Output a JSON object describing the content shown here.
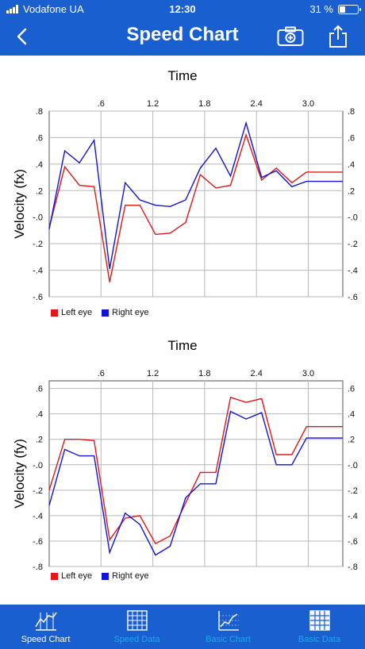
{
  "status": {
    "carrier": "Vodafone UA",
    "time": "12:30",
    "battery": "31 %",
    "battery_level": 0.31
  },
  "nav": {
    "title": "Speed Chart"
  },
  "colors": {
    "brand": "#1a5fd0",
    "left_eye": "#e01818",
    "right_eye": "#1414d4",
    "tab_inactive": "#20a8e8"
  },
  "legend": {
    "left": "Left eye",
    "right": "Right eye"
  },
  "tabs": [
    {
      "label": "Speed Chart",
      "icon": "line-chart-icon",
      "active": true
    },
    {
      "label": "Speed Data",
      "icon": "grid-table-icon",
      "active": false
    },
    {
      "label": "Basic Chart",
      "icon": "scatter-chart-icon",
      "active": false
    },
    {
      "label": "Basic Data",
      "icon": "grid-table-icon",
      "active": false
    }
  ],
  "chart_data": [
    {
      "type": "line",
      "title": "Time",
      "xlabel": "Time",
      "ylabel": "Velocity (fx)",
      "xlim": [
        0,
        3.4
      ],
      "ylim": [
        -0.6,
        0.8
      ],
      "x_ticks": [
        0.6,
        1.2,
        1.8,
        2.4,
        3.0
      ],
      "x_tick_labels": [
        ".6",
        "1.2",
        "1.8",
        "2.4",
        "3.0"
      ],
      "y_ticks": [
        -0.6,
        -0.4,
        -0.2,
        0.0,
        0.2,
        0.4,
        0.6,
        0.8
      ],
      "y_tick_labels": [
        "-.6",
        "-.4",
        "-.2",
        "-.0",
        ".2",
        ".4",
        ".6",
        ".8"
      ],
      "grid": true,
      "legend_position": "bottom-left",
      "x": [
        0.0,
        0.18,
        0.35,
        0.52,
        0.7,
        0.88,
        1.05,
        1.23,
        1.4,
        1.58,
        1.75,
        1.93,
        2.1,
        2.28,
        2.46,
        2.63,
        2.81,
        2.98,
        3.16,
        3.33,
        3.4
      ],
      "series": [
        {
          "name": "Left eye",
          "values": [
            -0.08,
            0.38,
            0.24,
            0.23,
            -0.49,
            0.09,
            0.09,
            -0.13,
            -0.12,
            -0.04,
            0.32,
            0.22,
            0.24,
            0.62,
            0.28,
            0.37,
            0.26,
            0.34,
            0.34,
            0.34,
            0.34
          ]
        },
        {
          "name": "Right eye",
          "values": [
            -0.09,
            0.5,
            0.41,
            0.58,
            -0.39,
            0.26,
            0.13,
            0.09,
            0.08,
            0.13,
            0.37,
            0.52,
            0.31,
            0.71,
            0.3,
            0.35,
            0.23,
            0.27,
            0.27,
            0.27,
            0.27
          ]
        }
      ]
    },
    {
      "type": "line",
      "title": "Time",
      "xlabel": "Time",
      "ylabel": "Velocity (fy)",
      "xlim": [
        0,
        3.4
      ],
      "ylim": [
        -0.8,
        0.66
      ],
      "x_ticks": [
        0.6,
        1.2,
        1.8,
        2.4,
        3.0
      ],
      "x_tick_labels": [
        ".6",
        "1.2",
        "1.8",
        "2.4",
        "3.0"
      ],
      "y_ticks": [
        -0.8,
        -0.6,
        -0.4,
        -0.2,
        0.0,
        0.2,
        0.4,
        0.6
      ],
      "y_tick_labels": [
        "-.8",
        "-.6",
        "-.4",
        "-.2",
        "-.0",
        ".2",
        ".4",
        ".6"
      ],
      "grid": true,
      "legend_position": "bottom-left",
      "x": [
        0.0,
        0.18,
        0.35,
        0.52,
        0.7,
        0.88,
        1.05,
        1.23,
        1.4,
        1.58,
        1.75,
        1.93,
        2.1,
        2.28,
        2.46,
        2.63,
        2.81,
        2.98,
        3.16,
        3.33,
        3.4
      ],
      "series": [
        {
          "name": "Left eye",
          "values": [
            -0.2,
            0.2,
            0.2,
            0.19,
            -0.59,
            -0.42,
            -0.4,
            -0.62,
            -0.56,
            -0.3,
            -0.06,
            -0.06,
            0.53,
            0.49,
            0.52,
            0.08,
            0.08,
            0.3,
            0.3,
            0.3,
            0.3
          ]
        },
        {
          "name": "Right eye",
          "values": [
            -0.32,
            0.12,
            0.07,
            0.07,
            -0.69,
            -0.38,
            -0.47,
            -0.71,
            -0.64,
            -0.26,
            -0.15,
            -0.15,
            0.42,
            0.36,
            0.41,
            0.0,
            0.0,
            0.21,
            0.21,
            0.21,
            0.21
          ]
        }
      ]
    }
  ]
}
